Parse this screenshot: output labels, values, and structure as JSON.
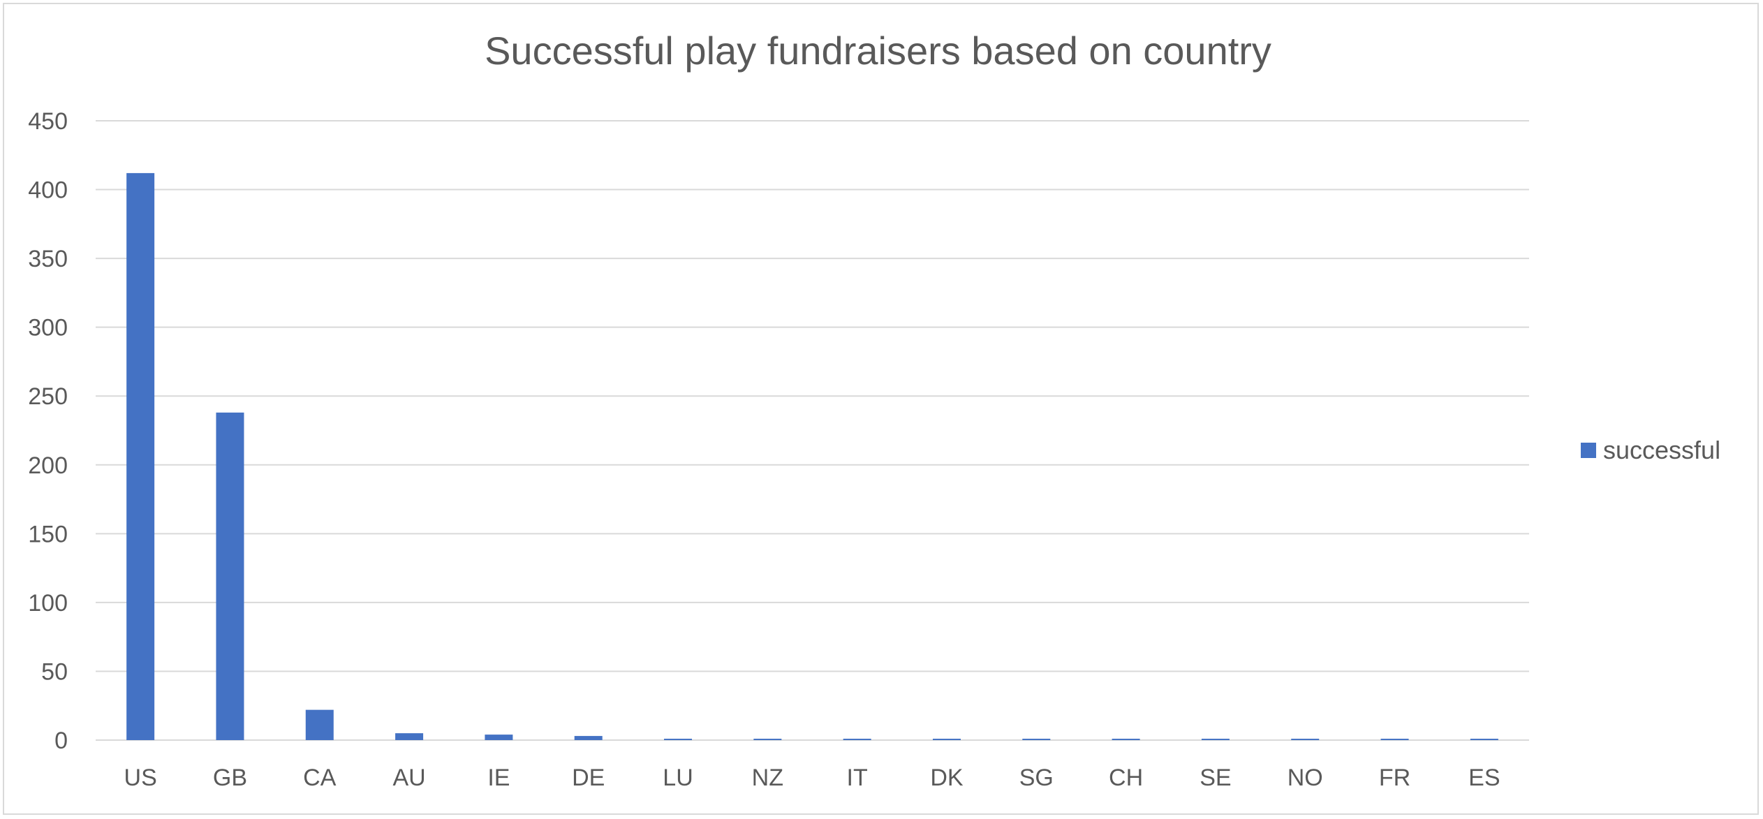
{
  "chart_data": {
    "type": "bar",
    "title": "Successful play fundraisers based on country",
    "xlabel": "",
    "ylabel": "",
    "categories": [
      "US",
      "GB",
      "CA",
      "AU",
      "IE",
      "DE",
      "LU",
      "NZ",
      "IT",
      "DK",
      "SG",
      "CH",
      "SE",
      "NO",
      "FR",
      "ES"
    ],
    "series": [
      {
        "name": "successful",
        "values": [
          412,
          238,
          22,
          5,
          4,
          3,
          1,
          1,
          1,
          1,
          1,
          1,
          1,
          1,
          1,
          1
        ],
        "color": "#4472c4"
      }
    ],
    "ylim": [
      0,
      450
    ],
    "yticks": [
      0,
      50,
      100,
      150,
      200,
      250,
      300,
      350,
      400,
      450
    ],
    "grid": true,
    "legend_position": "right"
  }
}
